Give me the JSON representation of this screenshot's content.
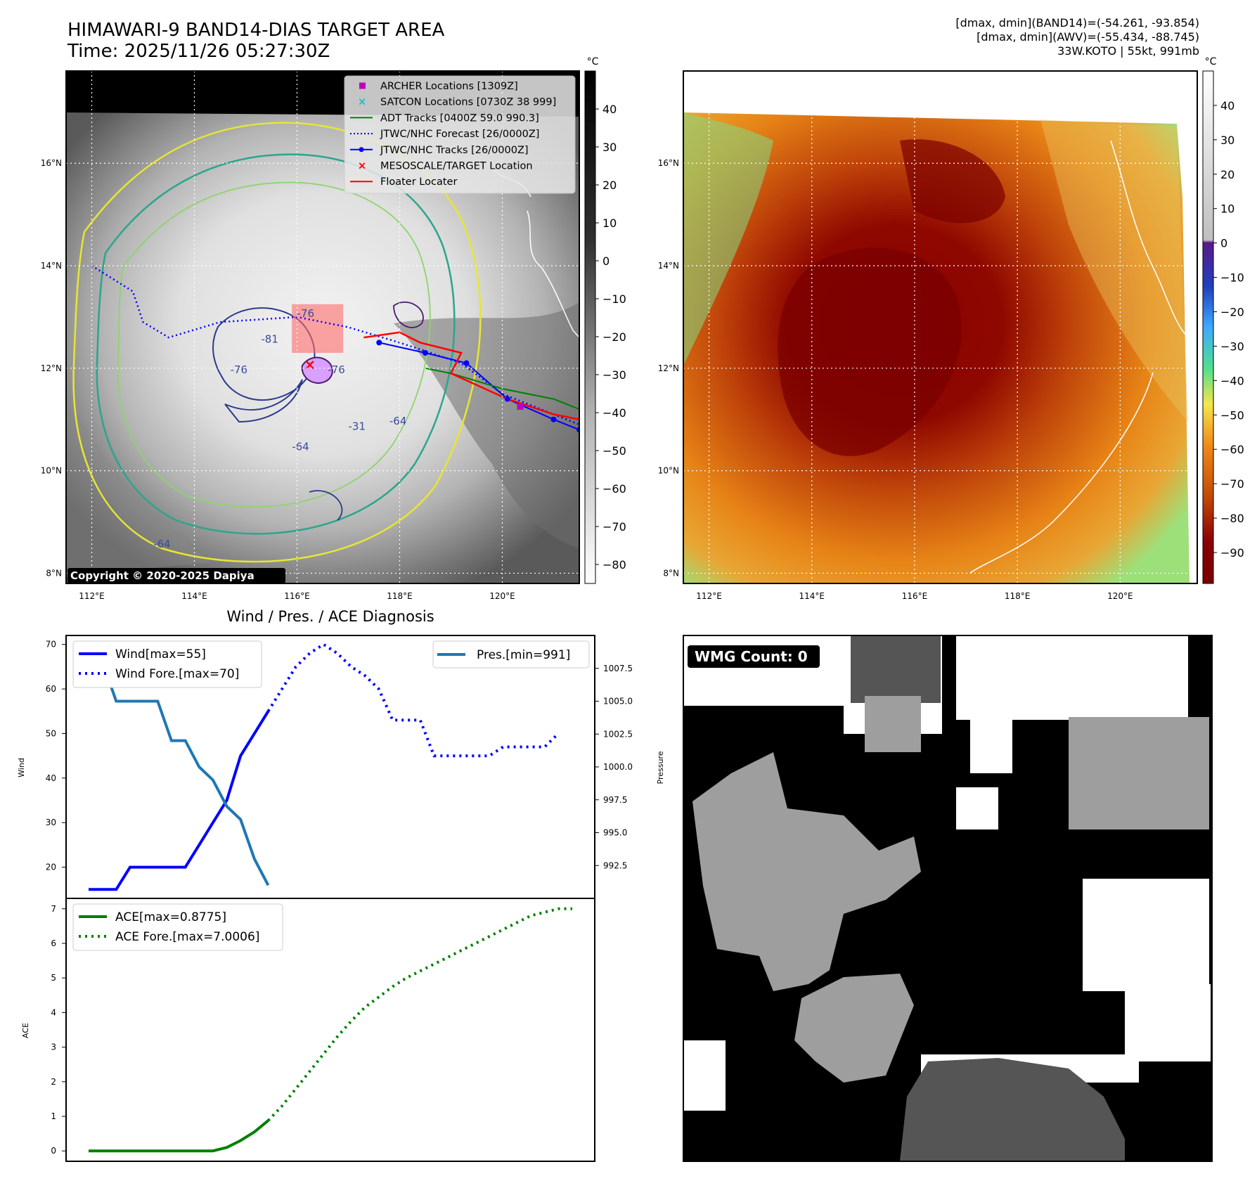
{
  "header": {
    "title_line1": "HIMAWARI-9 BAND14-DIAS TARGET AREA",
    "title_line2": "Time: 2025/11/26 05:27:30Z",
    "info_line1": "[dmax, dmin](BAND14)=(-54.261, -93.854)",
    "info_line2": "[dmax, dmin](AWV)=(-55.434, -88.745)",
    "info_line3": "33W.KOTO | 55kt, 991mb"
  },
  "map_axes": {
    "lon_labels": [
      "112°E",
      "114°E",
      "116°E",
      "118°E",
      "120°E"
    ],
    "lat_labels": [
      "16°N",
      "14°N",
      "12°N",
      "10°N",
      "8°N"
    ],
    "lon_values": [
      112,
      114,
      116,
      118,
      120
    ],
    "lat_values": [
      16,
      14,
      12,
      10,
      8
    ],
    "lon_range": [
      111.5,
      121.5
    ],
    "lat_range": [
      7.8,
      17.8
    ]
  },
  "ir_panel": {
    "copyright": "Copyright © 2020-2025 Dapiya",
    "contour_labels": [
      "-81",
      "-76",
      "-76",
      "-64",
      "-64",
      "-76",
      "-31",
      "-64"
    ],
    "legend": [
      {
        "label": "ARCHER Locations [1309Z]",
        "color": "#bf00bf",
        "icon": "square-marker"
      },
      {
        "label": "SATCON Locations [0730Z 38 999]",
        "color": "#17becf",
        "icon": "x-marker"
      },
      {
        "label": "ADT Tracks [0400Z 59.0 990.3]",
        "color": "#008000",
        "icon": "line"
      },
      {
        "label": "JTWC/NHC Forecast [26/0000Z]",
        "color": "#0000ff",
        "icon": "dotted-line"
      },
      {
        "label": "JTWC/NHC Tracks [26/0000Z]",
        "color": "#0000ff",
        "icon": "line-dot"
      },
      {
        "label": "MESOSCALE/TARGET Location",
        "color": "#ff0000",
        "icon": "x-marker"
      },
      {
        "label": "Floater Locater",
        "color": "#ff0000",
        "icon": "line"
      }
    ],
    "colorbar": {
      "unit": "°C",
      "ticks": [
        "40",
        "30",
        "20",
        "10",
        "0",
        "−10",
        "−20",
        "−30",
        "−40",
        "−50",
        "−60",
        "−70",
        "−80"
      ],
      "values": [
        40,
        30,
        20,
        10,
        0,
        -10,
        -20,
        -30,
        -40,
        -50,
        -60,
        -70,
        -80
      ],
      "range": [
        -85,
        50
      ]
    },
    "tracks": {
      "forecast": [
        [
          112,
          14.0
        ],
        [
          112.8,
          13.5
        ],
        [
          113,
          12.9
        ],
        [
          113.5,
          12.6
        ],
        [
          114.5,
          12.9
        ],
        [
          116,
          13.0
        ],
        [
          117,
          12.8
        ],
        [
          118,
          12.5
        ],
        [
          119.2,
          12.1
        ],
        [
          120,
          11.5
        ],
        [
          121,
          11.1
        ],
        [
          121.5,
          10.9
        ]
      ],
      "best": [
        [
          117.6,
          12.5
        ],
        [
          118.5,
          12.3
        ],
        [
          119.3,
          12.1
        ],
        [
          120.1,
          11.4
        ],
        [
          121,
          11.0
        ],
        [
          121.5,
          10.8
        ]
      ],
      "adt": [
        [
          118.5,
          12.0
        ],
        [
          119,
          11.9
        ],
        [
          120,
          11.6
        ],
        [
          121,
          11.4
        ],
        [
          121.5,
          11.2
        ]
      ],
      "floater": [
        [
          117.3,
          12.6
        ],
        [
          118.0,
          12.7
        ],
        [
          118.4,
          12.5
        ],
        [
          119.2,
          12.3
        ],
        [
          119.0,
          11.9
        ],
        [
          120.1,
          11.4
        ],
        [
          121.0,
          11.1
        ],
        [
          121.5,
          11.0
        ]
      ],
      "target": [
        116.25,
        12.05
      ],
      "archer": [
        120.35,
        11.25
      ],
      "floater_box": [
        [
          115.9,
          12.3
        ],
        [
          116.9,
          13.25
        ]
      ]
    }
  },
  "awv_panel": {
    "colorbar": {
      "unit": "°C",
      "ticks": [
        "40",
        "30",
        "20",
        "10",
        "0",
        "−10",
        "−20",
        "−30",
        "−40",
        "−50",
        "−60",
        "−70",
        "−80",
        "−90"
      ],
      "values": [
        40,
        30,
        20,
        10,
        0,
        -10,
        -20,
        -30,
        -40,
        -50,
        -60,
        -70,
        -80,
        -90
      ],
      "range": [
        -99,
        50
      ]
    }
  },
  "chart_data": [
    {
      "type": "line",
      "title": "Wind / Pres. / ACE Diagnosis",
      "xlabel": "",
      "ylabel": "Wind",
      "ylabel_right": "Pressure",
      "ylim": [
        13,
        72
      ],
      "ylim_right": [
        990,
        1010
      ],
      "yticks": [
        20,
        30,
        40,
        50,
        60,
        70
      ],
      "yticks_right": [
        "992.5",
        "995.0",
        "997.5",
        "1000.0",
        "1002.5",
        "1005.0",
        "1007.5"
      ],
      "yticks_right_values": [
        992.5,
        995.0,
        997.5,
        1000.0,
        1002.5,
        1005.0,
        1007.5
      ],
      "x_range": [
        0,
        35
      ],
      "series": [
        {
          "name": "Wind[max=55]",
          "axis": "left",
          "style": "solid",
          "color": "#0000ff",
          "x": [
            0,
            2,
            3,
            4,
            5,
            6,
            7,
            8,
            9,
            10,
            11,
            12,
            13
          ],
          "values": [
            15,
            15,
            20,
            20,
            20,
            20,
            20,
            25,
            30,
            35,
            45,
            50,
            55
          ]
        },
        {
          "name": "Wind Fore.[max=70]",
          "axis": "left",
          "style": "dotted",
          "color": "#0000ff",
          "x": [
            13,
            14,
            15,
            16,
            17,
            18,
            19,
            20,
            21,
            22,
            23,
            24,
            25,
            26,
            27,
            28,
            29,
            30,
            31,
            32,
            33,
            34
          ],
          "values": [
            55,
            60,
            65,
            68,
            70,
            68,
            65,
            63,
            60,
            53,
            53,
            53,
            45,
            45,
            45,
            45,
            45,
            47,
            47,
            47,
            47,
            50
          ]
        },
        {
          "name": "Pres.[min=991]",
          "axis": "right",
          "style": "solid",
          "color": "#1f77b4",
          "x": [
            0,
            1,
            1,
            2,
            3,
            4,
            5,
            6,
            7,
            8,
            9,
            10,
            11,
            12,
            13
          ],
          "values": [
            1009,
            1009,
            1008,
            1005,
            1005,
            1005,
            1005,
            1002,
            1002,
            1000,
            999,
            997,
            996,
            993,
            991
          ]
        }
      ]
    },
    {
      "type": "line",
      "title": "",
      "xlabel": "",
      "ylabel": "ACE",
      "ylim": [
        -0.3,
        7.3
      ],
      "yticks": [
        0,
        1,
        2,
        3,
        4,
        5,
        6,
        7
      ],
      "x_range": [
        0,
        35
      ],
      "series": [
        {
          "name": "ACE[max=0.8775]",
          "style": "solid",
          "color": "#008000",
          "x": [
            0,
            2,
            4,
            6,
            8,
            9,
            10,
            11,
            12,
            13
          ],
          "values": [
            0,
            0,
            0,
            0,
            0,
            0,
            0.1,
            0.3,
            0.55,
            0.8775
          ]
        },
        {
          "name": "ACE Fore.[max=7.0006]",
          "style": "dotted",
          "color": "#008000",
          "x": [
            13,
            14,
            15,
            16,
            17,
            18,
            19,
            20,
            21,
            22,
            23,
            24,
            25,
            26,
            27,
            28,
            29,
            30,
            31,
            32,
            33,
            34,
            35
          ],
          "values": [
            0.8775,
            1.3,
            1.8,
            2.3,
            2.8,
            3.3,
            3.75,
            4.15,
            4.45,
            4.75,
            5.0,
            5.2,
            5.4,
            5.6,
            5.8,
            6.0,
            6.2,
            6.4,
            6.6,
            6.8,
            6.9,
            7.0,
            7.0006
          ]
        }
      ]
    }
  ],
  "wmg_panel": {
    "label": "WMG Count: 0"
  }
}
